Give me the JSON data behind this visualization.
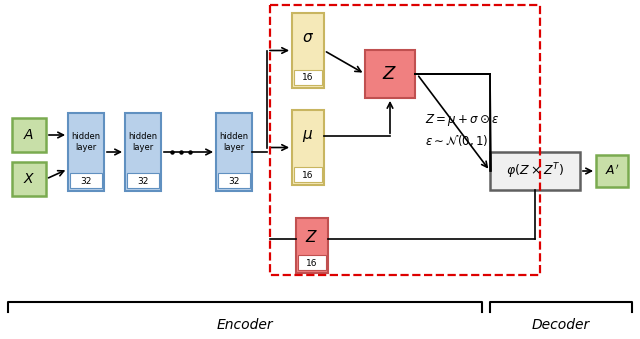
{
  "bg_color": "#ffffff",
  "green_fill": "#c8dfa8",
  "green_edge": "#7aab50",
  "blue_fill": "#b8d0ea",
  "blue_edge": "#6090c0",
  "yellow_fill": "#f5e9b8",
  "yellow_edge": "#c8b560",
  "pink_fill": "#f08080",
  "pink_edge": "#c05050",
  "gray_fill": "#f0f0f0",
  "gray_edge": "#606060",
  "red_dashed": "#dd0000",
  "encoder_label": "Encoder",
  "decoder_label": "Decoder",
  "formula1": "$Z = \\mu + \\sigma \\odot \\varepsilon$",
  "formula2": "$\\varepsilon \\sim \\mathcal{N}(0, 1)$",
  "decoder_box_label": "$\\varphi(Z \\times Z^T)$",
  "A_label": "$A$",
  "X_label": "$X$",
  "Aprime_label": "$A'$",
  "sigma_label": "$\\sigma$",
  "mu_label": "$\\mu$",
  "Z_label": "$Z$"
}
